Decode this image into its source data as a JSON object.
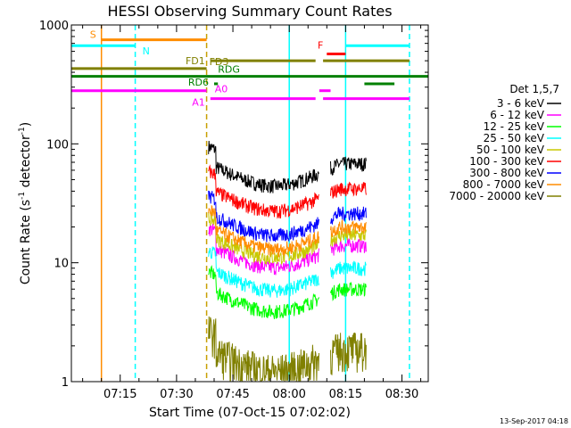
{
  "chart_data": {
    "type": "line",
    "title": "HESSI Observing Summary Count Rates",
    "xlabel": "Start Time (07-Oct-15 07:02:02)",
    "ylabel_main": "Count Rate (s",
    "ylabel_sup1": "-1",
    "ylabel_mid": " detector",
    "ylabel_sup2": "-1",
    "ylabel_end": ")",
    "yscale": "log",
    "ylim": [
      1,
      1000
    ],
    "xlim_minutes": [
      0,
      95
    ],
    "ytick_labels": [
      {
        "value": 1,
        "label": "1"
      },
      {
        "value": 10,
        "label": "10"
      },
      {
        "value": 100,
        "label": "100"
      },
      {
        "value": 1000,
        "label": "1000"
      }
    ],
    "xtick_labels": [
      {
        "t": 13,
        "label": "07:15"
      },
      {
        "t": 28,
        "label": "07:30"
      },
      {
        "t": 43,
        "label": "07:45"
      },
      {
        "t": 58,
        "label": "08:00"
      },
      {
        "t": 73,
        "label": "08:15"
      },
      {
        "t": 88,
        "label": "08:30"
      }
    ],
    "legend_title": "Det 1,5,7",
    "series": [
      {
        "name": "3 - 6 keV",
        "color": "#000000",
        "level": 68
      },
      {
        "name": "6 - 12 keV",
        "color": "#ff00ff",
        "level": 14
      },
      {
        "name": "12 - 25 keV",
        "color": "#00ff00",
        "level": 6
      },
      {
        "name": "25 - 50 keV",
        "color": "#00ffff",
        "level": 9
      },
      {
        "name": "50 - 100 keV",
        "color": "#c8c800",
        "level": 17
      },
      {
        "name": "100 - 300 keV",
        "color": "#ff0000",
        "level": 42
      },
      {
        "name": "300 - 800 keV",
        "color": "#0000ff",
        "level": 26
      },
      {
        "name": "800 - 7000 keV",
        "color": "#ff8c00",
        "level": 20
      },
      {
        "name": "7000 - 20000 keV",
        "color": "#808000",
        "level": 1.6
      }
    ],
    "flag_bars": [
      {
        "label": "S",
        "color": "#ff8c00",
        "y": 750,
        "segments": [
          [
            8,
            36
          ]
        ]
      },
      {
        "label": "N",
        "color": "#00ffff",
        "y": 670,
        "segments": [
          [
            0,
            17
          ],
          [
            73,
            90
          ]
        ]
      },
      {
        "label": "F",
        "color": "#ff0000",
        "y": 570,
        "segments": [
          [
            68,
            73
          ]
        ]
      },
      {
        "label": "FD1",
        "color": "#808000",
        "y": 500,
        "segments": [
          [
            37,
            65
          ],
          [
            67,
            90
          ]
        ]
      },
      {
        "label": "FD3",
        "color": "#808000",
        "y": 430,
        "segments": [
          [
            0,
            36
          ]
        ]
      },
      {
        "label": "RDG",
        "color": "#008000",
        "y": 370,
        "segments": [
          [
            0,
            95
          ]
        ]
      },
      {
        "label": "RD6",
        "color": "#008000",
        "y": 320,
        "segments": [
          [
            38,
            39
          ],
          [
            78,
            86
          ]
        ]
      },
      {
        "label": "A0",
        "color": "#ff00ff",
        "y": 280,
        "segments": [
          [
            0,
            36
          ],
          [
            66,
            69
          ]
        ]
      },
      {
        "label": "A1",
        "color": "#ff00ff",
        "y": 240,
        "segments": [
          [
            37,
            65
          ],
          [
            67,
            90
          ]
        ]
      }
    ],
    "vertical_markers": [
      {
        "t": 8,
        "color": "#ff8c00",
        "style": "solid"
      },
      {
        "t": 17,
        "color": "#00ffff",
        "style": "dashed"
      },
      {
        "t": 36,
        "color": "#c8a000",
        "style": "dashed"
      },
      {
        "t": 58,
        "color": "#00ffff",
        "style": "solid"
      },
      {
        "t": 73,
        "color": "#00ffff",
        "style": "solid"
      },
      {
        "t": 90,
        "color": "#00ffff",
        "style": "dashed"
      }
    ],
    "data_window_minutes": [
      36.5,
      78.5
    ],
    "gap_minutes": [
      66,
      69
    ]
  },
  "footer": {
    "timestamp": "13-Sep-2017 04:18"
  }
}
